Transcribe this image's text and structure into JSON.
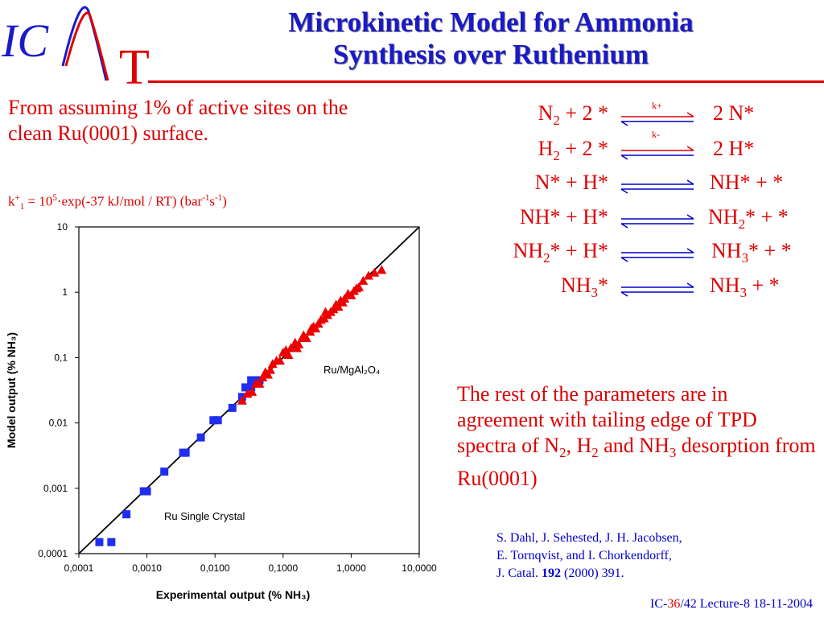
{
  "logo": {
    "ic": "IC",
    "t": "T"
  },
  "title": {
    "line1": "Microkinetic Model for  Ammonia",
    "line2": "Synthesis over Ruthenium"
  },
  "intro": {
    "text": "From assuming 1% of active sites on the clean Ru(0001) surface.",
    "formula": {
      "k": "k",
      "sup_plus": "+",
      "sub_1": "1",
      "eq": " = 10",
      "exp5": "5",
      "rest": "·exp(-37 kJ/mol / RT) (bar",
      "u1": "-1",
      "s": "s",
      "u2": "-1",
      "close": ")"
    }
  },
  "reactions": [
    {
      "left": [
        "N",
        "2",
        " + 2 *"
      ],
      "right": [
        "2 N*"
      ]
    },
    {
      "left": [
        "H",
        "2",
        " + 2 *"
      ],
      "right": [
        "2 H*"
      ]
    },
    {
      "left": [
        "N* + H*"
      ],
      "right": [
        "NH* + *"
      ]
    },
    {
      "left": [
        "NH* + H*"
      ],
      "right": [
        "NH",
        "2",
        "* + *"
      ]
    },
    {
      "left": [
        "NH",
        "2",
        "* + H*"
      ],
      "right": [
        "NH",
        "3",
        "* + *"
      ]
    },
    {
      "left": [
        "NH",
        "3",
        "*"
      ],
      "right": [
        "NH",
        "3",
        " + *"
      ]
    }
  ],
  "k_labels": {
    "kplus": "k+",
    "kminus": "k-"
  },
  "rest_text": {
    "a": "The rest of the parameters are in agreement with tailing edge of TPD spectra of N",
    "s2": "2",
    "b": ", H",
    "s3": "2",
    "c": " and NH",
    "s4": "3",
    "d": " desorption from Ru(0001)"
  },
  "refs": {
    "l1": "S. Dahl, J. Sehested, J. H. Jacobsen,",
    "l2": "E. Tornqvist, and I. Chorkendorff,",
    "l3a": "J. Catal.  ",
    "l3b": "192",
    "l3c": " (2000) 391."
  },
  "footer": {
    "a": "IC-",
    "b": "36",
    "c": "/42  Lecture-8 18-11-2004"
  },
  "colors": {
    "title": "#1a1ac8",
    "red": "#dd0000",
    "blue": "#0000cc",
    "square": "#1f2ff0",
    "triangle": "#ee0000"
  },
  "chart_data": {
    "type": "scatter",
    "xscale": "log",
    "yscale": "log",
    "xlim": [
      0.0001,
      10
    ],
    "ylim": [
      0.0001,
      10
    ],
    "xticks": [
      "0,0001",
      "0,0010",
      "0,0100",
      "0,1000",
      "1,0000",
      "10,0000"
    ],
    "yticks": [
      "0,0001",
      "0,001",
      "0,01",
      "0,1",
      "1",
      "10"
    ],
    "xlabel": "Experimental output (% NH₃)",
    "ylabel": "Model output (% NH₃)",
    "annotations": [
      "Ru/MgAl₂O₄",
      "Ru Single Crystal"
    ],
    "parity_line": true,
    "series": [
      {
        "marker": "square",
        "x": [
          0.0002,
          0.0003,
          0.0005,
          0.0009,
          0.001,
          0.0018,
          0.0034,
          0.0037,
          0.0062,
          0.0095,
          0.011,
          0.018,
          0.025,
          0.028,
          0.034,
          0.04,
          0.034,
          0.045
        ],
        "y": [
          0.00015,
          0.00015,
          0.0004,
          0.0009,
          0.0009,
          0.0018,
          0.0035,
          0.0035,
          0.006,
          0.011,
          0.011,
          0.017,
          0.025,
          0.035,
          0.035,
          0.045,
          0.045,
          0.045
        ]
      },
      {
        "marker": "triangle",
        "x": [
          0.025,
          0.03,
          0.035,
          0.04,
          0.045,
          0.05,
          0.055,
          0.06,
          0.065,
          0.07,
          0.08,
          0.09,
          0.1,
          0.11,
          0.12,
          0.13,
          0.15,
          0.17,
          0.19,
          0.2,
          0.22,
          0.25,
          0.28,
          0.3,
          0.33,
          0.36,
          0.4,
          0.45,
          0.5,
          0.55,
          0.6,
          0.65,
          0.7,
          0.8,
          0.9,
          1.0,
          1.1,
          1.3,
          1.5,
          1.8,
          2.2,
          2.8,
          0.16,
          0.26,
          0.42,
          0.75,
          1.2
        ],
        "y": [
          0.022,
          0.028,
          0.03,
          0.04,
          0.04,
          0.05,
          0.06,
          0.055,
          0.065,
          0.08,
          0.09,
          0.09,
          0.12,
          0.13,
          0.11,
          0.14,
          0.17,
          0.16,
          0.2,
          0.22,
          0.2,
          0.25,
          0.3,
          0.28,
          0.33,
          0.38,
          0.4,
          0.45,
          0.5,
          0.55,
          0.65,
          0.6,
          0.75,
          0.8,
          0.95,
          0.9,
          1.05,
          1.2,
          1.5,
          1.8,
          2.0,
          2.2,
          0.14,
          0.28,
          0.5,
          0.7,
          1.15
        ]
      }
    ]
  }
}
